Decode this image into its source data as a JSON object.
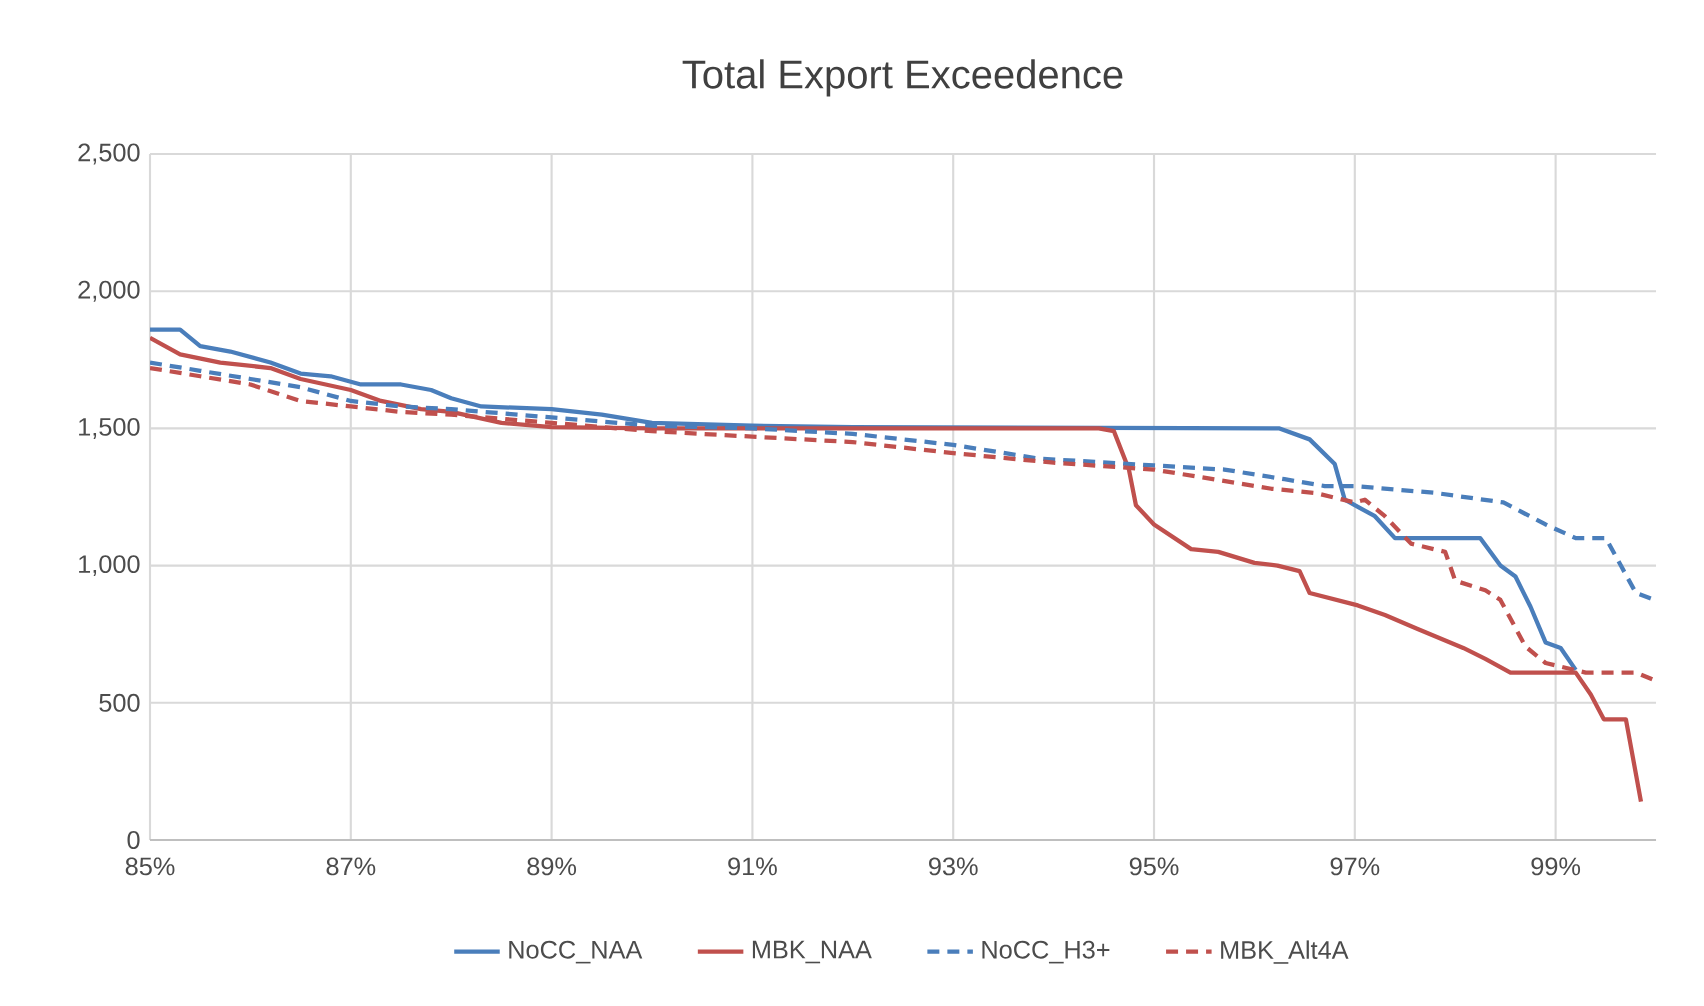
{
  "chart_data": {
    "type": "line",
    "title": "Total Export Exceedence",
    "xlim": [
      85,
      100
    ],
    "xticks": [
      {
        "value": 85,
        "label": "85%"
      },
      {
        "value": 87,
        "label": "87%"
      },
      {
        "value": 89,
        "label": "89%"
      },
      {
        "value": 91,
        "label": "91%"
      },
      {
        "value": 93,
        "label": "93%"
      },
      {
        "value": 95,
        "label": "95%"
      },
      {
        "value": 97,
        "label": "97%"
      },
      {
        "value": 99,
        "label": "99%"
      }
    ],
    "ylim": [
      0,
      2500
    ],
    "yticks": [
      0,
      500,
      {
        "value": 1000,
        "label": "1,000"
      },
      {
        "value": 1500,
        "label": "1,500"
      },
      {
        "value": 2000,
        "label": "2,000"
      },
      {
        "value": 2500,
        "label": "2,500"
      }
    ],
    "grid": true,
    "legend": "bottom",
    "marker": "none",
    "series": [
      {
        "name": "NoCC_NAA",
        "color": "#4a7ebb",
        "line_style": "solid",
        "x": [
          85,
          85.3,
          85.5,
          85.8,
          86.2,
          86.5,
          86.8,
          87.1,
          87.5,
          87.8,
          88.0,
          88.3,
          89,
          89.5,
          90,
          91,
          92,
          96.25,
          96.55,
          96.8,
          96.9,
          97.2,
          97.4,
          98.25,
          98.45,
          98.6,
          98.75,
          98.9,
          99.05,
          99.2
        ],
        "values": [
          1860,
          1860,
          1800,
          1780,
          1740,
          1700,
          1690,
          1660,
          1660,
          1640,
          1610,
          1580,
          1570,
          1550,
          1520,
          1510,
          1505,
          1500,
          1460,
          1370,
          1240,
          1180,
          1100,
          1100,
          1000,
          960,
          850,
          720,
          700,
          620
        ]
      },
      {
        "name": "MBK_NAA",
        "color": "#c0504d",
        "line_style": "solid",
        "x": [
          85,
          85.3,
          85.7,
          86.2,
          86.5,
          87,
          87.3,
          87.7,
          88,
          88.5,
          89,
          90,
          94.45,
          94.6,
          94.75,
          94.82,
          95.0,
          95.37,
          95.64,
          96.0,
          96.23,
          96.45,
          96.55,
          97.03,
          97.3,
          97.62,
          98.08,
          98.3,
          98.55,
          99.2,
          99.35,
          99.48,
          99.7,
          99.77,
          99.85
        ],
        "values": [
          1830,
          1770,
          1740,
          1720,
          1680,
          1640,
          1600,
          1570,
          1560,
          1520,
          1505,
          1500,
          1500,
          1490,
          1350,
          1220,
          1150,
          1060,
          1050,
          1010,
          1000,
          980,
          900,
          855,
          820,
          770,
          700,
          660,
          610,
          610,
          530,
          440,
          440,
          300,
          140
        ]
      },
      {
        "name": "NoCC_H3+",
        "color": "#4a7ebb",
        "line_style": "dashed",
        "x": [
          85,
          85.5,
          86,
          86.5,
          87,
          87.5,
          88,
          89,
          90,
          91,
          92,
          93,
          93.85,
          95,
          95.7,
          96.3,
          96.7,
          97,
          97.8,
          98.48,
          98.9,
          99.2,
          99.5,
          99.65,
          99.8,
          99.95
        ],
        "values": [
          1740,
          1710,
          1680,
          1650,
          1600,
          1580,
          1570,
          1540,
          1510,
          1500,
          1480,
          1440,
          1390,
          1365,
          1350,
          1315,
          1290,
          1290,
          1265,
          1230,
          1150,
          1100,
          1100,
          1000,
          900,
          880
        ]
      },
      {
        "name": "MBK_Alt4A",
        "color": "#c0504d",
        "line_style": "dashed",
        "x": [
          85,
          85.5,
          86,
          86.5,
          87,
          87.5,
          88,
          89,
          90,
          91,
          92,
          93,
          94,
          95,
          96.17,
          96.6,
          97.0,
          97.1,
          97.3,
          97.56,
          97.9,
          98.0,
          98.3,
          98.45,
          98.7,
          98.9,
          99.3,
          99.8,
          100
        ],
        "values": [
          1720,
          1690,
          1660,
          1600,
          1580,
          1560,
          1550,
          1520,
          1490,
          1470,
          1450,
          1410,
          1375,
          1350,
          1280,
          1265,
          1230,
          1240,
          1180,
          1080,
          1050,
          945,
          910,
          875,
          705,
          645,
          610,
          610,
          580
        ]
      }
    ]
  }
}
